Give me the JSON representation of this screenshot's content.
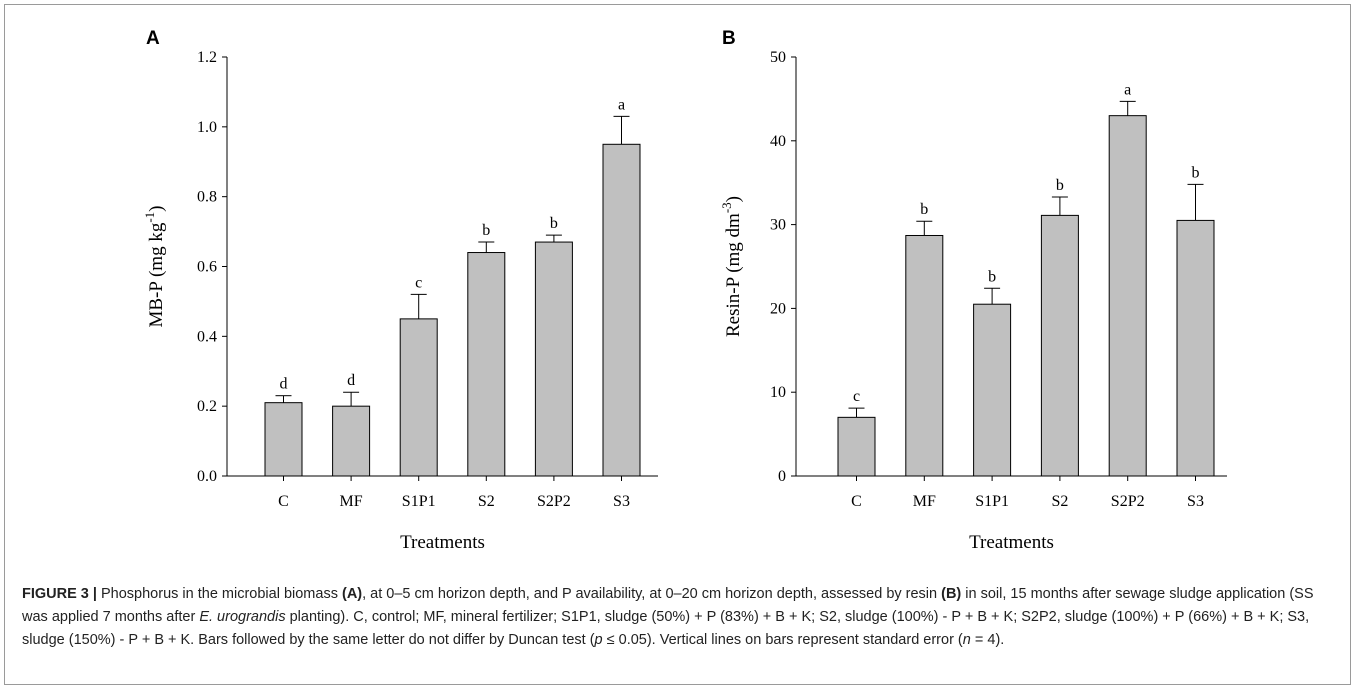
{
  "chart_data": [
    {
      "type": "bar",
      "panel": "A",
      "categories": [
        "C",
        "MF",
        "S1P1",
        "S2",
        "S2P2",
        "S3"
      ],
      "values": [
        0.21,
        0.2,
        0.45,
        0.64,
        0.67,
        0.95
      ],
      "errors": [
        0.02,
        0.04,
        0.07,
        0.03,
        0.02,
        0.08
      ],
      "letters": [
        "d",
        "d",
        "c",
        "b",
        "b",
        "a"
      ],
      "ylim": [
        0,
        1.2
      ],
      "yticks": [
        "0.0",
        "0.2",
        "0.4",
        "0.6",
        "0.8",
        "1.0",
        "1.2"
      ],
      "ylabel_main": "MB-P (mg kg",
      "ylabel_sup": "-1",
      "ylabel_end": ")",
      "xlabel": "Treatments",
      "bar_color": "#c0c0c0"
    },
    {
      "type": "bar",
      "panel": "B",
      "categories": [
        "C",
        "MF",
        "S1P1",
        "S2",
        "S2P2",
        "S3"
      ],
      "values": [
        7.0,
        28.7,
        20.5,
        31.1,
        43.0,
        30.5
      ],
      "errors": [
        1.1,
        1.7,
        1.9,
        2.2,
        1.7,
        4.3
      ],
      "letters": [
        "c",
        "b",
        "b",
        "b",
        "a",
        "b"
      ],
      "ylim": [
        0,
        50
      ],
      "yticks": [
        "0",
        "10",
        "20",
        "30",
        "40",
        "50"
      ],
      "ylabel_main": "Resin-P (mg dm",
      "ylabel_sup": "-3",
      "ylabel_end": ")",
      "xlabel": "Treatments",
      "bar_color": "#c0c0c0"
    }
  ],
  "caption": {
    "label": "FIGURE 3 |",
    "t1": " Phosphorus in the microbial biomass ",
    "p1": "(A)",
    "t2": ", at 0–5 cm horizon depth, and P availability, at 0–20 cm horizon depth, assessed by resin ",
    "p2": "(B)",
    "t3": " in soil, 15 months after sewage sludge application (SS was applied 7 months after ",
    "species": "E. urograndis",
    "t4": " planting). C, control; MF, mineral fertilizer; S1P1, sludge (50%) + P (83%) + B + K; S2, sludge (100%) - P + B + K; S2P2, sludge (100%) + P (66%) + B + K; S3, sludge (150%) - P + B + K. Bars followed by the same letter do not differ by Duncan test (",
    "p_var": "p",
    "t5": " ≤ 0.05). Vertical lines on bars represent standard error (",
    "n_var": "n",
    "t6": " = 4)."
  }
}
